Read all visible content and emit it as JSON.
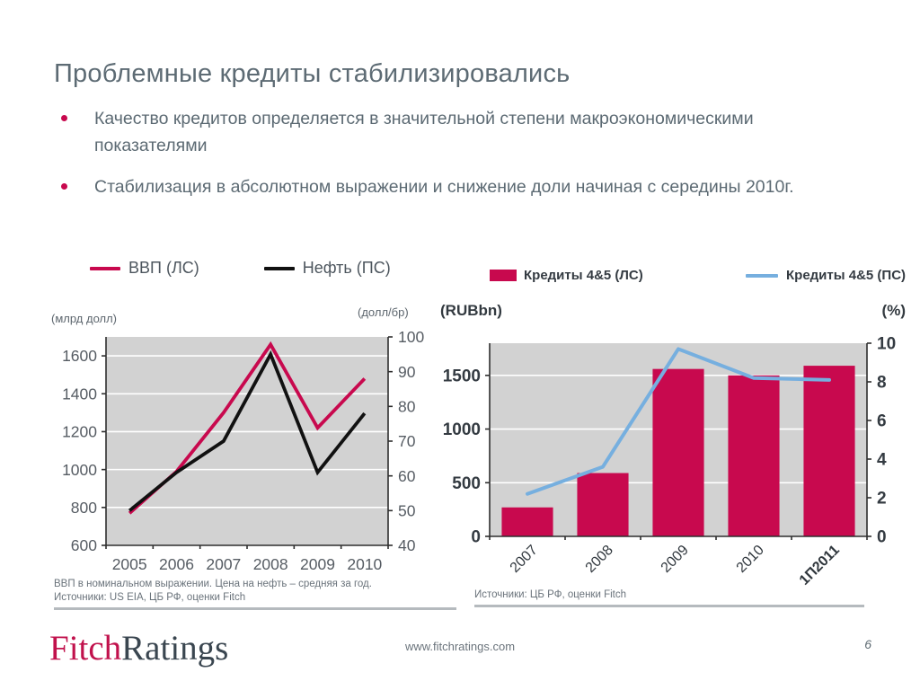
{
  "slide": {
    "title": "Проблемные кредиты стабилизировались",
    "bullets": [
      "Качество кредитов определяется в значительной степени макроэкономическими показателями",
      "Стабилизация в абсолютном выражении и снижение доли начиная с середины 2010г."
    ]
  },
  "colors": {
    "crimson": "#C8094E",
    "blue": "#76AFDF",
    "line_black": "#111111",
    "plot_bg": "#D2D2D2",
    "grid": "#FFFFFF",
    "axis": "#2E2E2E"
  },
  "chart_data": [
    {
      "type": "line",
      "categories": [
        "2005",
        "2006",
        "2007",
        "2008",
        "2009",
        "2010"
      ],
      "series": [
        {
          "name": "ВВП (ЛС)",
          "axis": "left",
          "color": "#C8094E",
          "values": [
            770,
            990,
            1300,
            1660,
            1220,
            1480
          ]
        },
        {
          "name": "Нефть (ПС)",
          "axis": "right",
          "color": "#111111",
          "values": [
            50,
            61,
            70,
            95,
            61,
            78
          ]
        }
      ],
      "left_axis": {
        "label": "(млрд долл)",
        "min": 600,
        "max": 1700,
        "ticks": [
          600,
          800,
          1000,
          1200,
          1400,
          1600
        ]
      },
      "right_axis": {
        "label": "(долл/бр)",
        "min": 40,
        "max": 100,
        "ticks": [
          40,
          50,
          60,
          70,
          80,
          90,
          100
        ]
      },
      "gridlines": [
        800,
        1000,
        1200,
        1400,
        1600
      ],
      "legend_position": "top",
      "grid": "on",
      "footnote": [
        "ВВП в номинальном выражении. Цена на нефть – средняя за год.",
        "Источники: US EIA, ЦБ РФ, оценки Fitch"
      ]
    },
    {
      "type": "bar",
      "categories": [
        "2007",
        "2008",
        "2009",
        "2010",
        "1П2011"
      ],
      "series": [
        {
          "name": "Кредиты 4&5 (ЛС)",
          "type": "bar",
          "axis": "left",
          "color": "#C8094E",
          "values": [
            270,
            590,
            1560,
            1500,
            1590
          ]
        },
        {
          "name": "Кредиты 4&5 (ПС)",
          "type": "line",
          "axis": "right",
          "color": "#76AFDF",
          "values": [
            2.2,
            3.6,
            9.7,
            8.2,
            8.1
          ]
        }
      ],
      "left_axis": {
        "label": "(RUBbn)",
        "min": 0,
        "max": 1800,
        "ticks": [
          0,
          500,
          1000,
          1500
        ]
      },
      "right_axis": {
        "label": "(%)",
        "min": 0,
        "max": 10,
        "ticks": [
          0,
          2,
          4,
          6,
          8,
          10
        ]
      },
      "gridlines": [
        500,
        1000,
        1500
      ],
      "legend_position": "top",
      "grid": "on",
      "footnote": [
        "Источники: ЦБ РФ, оценки Fitch"
      ]
    }
  ],
  "footer": {
    "logo_fitch": "Fitch",
    "logo_ratings": "Ratings",
    "url": "www.fitchratings.com",
    "page": "6"
  }
}
